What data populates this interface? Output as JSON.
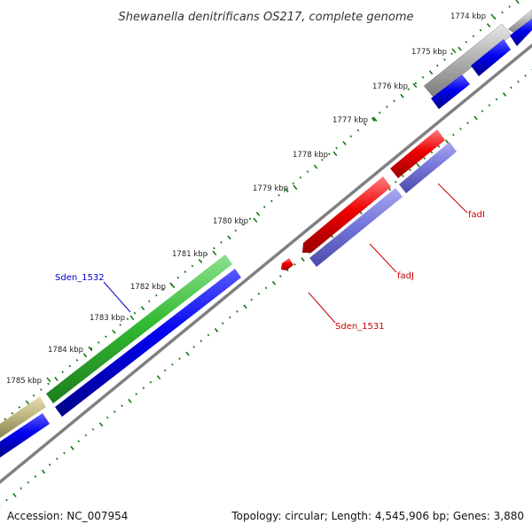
{
  "title": "Shewanella denitrificans OS217, complete genome",
  "footer": {
    "accession": "Accession: NC_007954",
    "summary": "Topology: circular; Length: 4,545,906 bp; Genes: 3,880"
  },
  "ticks": [
    {
      "label": "1774 kbp"
    },
    {
      "label": "1775 kbp"
    },
    {
      "label": "1776 kbp"
    },
    {
      "label": "1777 kbp"
    },
    {
      "label": "1778 kbp"
    },
    {
      "label": "1779 kbp"
    },
    {
      "label": "1780 kbp"
    },
    {
      "label": "1781 kbp"
    },
    {
      "label": "1782 kbp"
    },
    {
      "label": "1783 kbp"
    },
    {
      "label": "1784 kbp"
    },
    {
      "label": "1785 kbp"
    }
  ],
  "gene_labels": [
    {
      "name": "Sden_1532",
      "color": "#0000cc"
    },
    {
      "name": "fadI",
      "color": "#cc0000"
    },
    {
      "name": "fadJ",
      "color": "#cc0000"
    },
    {
      "name": "Sden_1531",
      "color": "#cc0000"
    }
  ],
  "colors": {
    "backbone": "#808080",
    "cds": "#0000ee",
    "gc_skew": "#117711",
    "red_feature": "#ee0000",
    "purple_feature": "#7777dd",
    "green_feature": "#33bb33",
    "grey_feature": "#b4b4b4",
    "olive_feature": "#c0b880"
  }
}
